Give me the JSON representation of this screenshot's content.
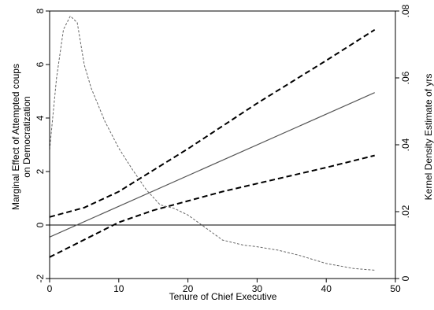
{
  "chart_data": {
    "type": "line",
    "title": "",
    "xlabel": "Tenure of Chief Executive",
    "ylabel_left": [
      "Marginal Effect of Attempted coups",
      "on Democratization"
    ],
    "ylabel_right": "Kernel Density Estimate of yrs",
    "xlim": [
      0,
      50
    ],
    "ylim_left": [
      -2,
      8
    ],
    "ylim_right": [
      0,
      0.08
    ],
    "xticks": [
      "0",
      "10",
      "20",
      "30",
      "40",
      "50"
    ],
    "yticks_left": [
      "-2",
      "0",
      "2",
      "4",
      "6",
      "8"
    ],
    "yticks_right": [
      "0",
      ".02",
      ".04",
      ".06",
      ".08"
    ],
    "grid": false,
    "legend": "none",
    "reference_line": {
      "y": 0,
      "color": "#000000"
    },
    "series": [
      {
        "role": "marginal_effect",
        "axis": "left",
        "style": "solid",
        "color": "#555555",
        "points": [
          [
            0,
            -0.45
          ],
          [
            47,
            4.95
          ]
        ]
      },
      {
        "role": "upper_ci",
        "axis": "left",
        "style": "dashed",
        "color": "#000000",
        "points": [
          [
            0,
            0.3
          ],
          [
            5,
            0.65
          ],
          [
            10,
            1.25
          ],
          [
            15,
            2.05
          ],
          [
            20,
            2.85
          ],
          [
            25,
            3.7
          ],
          [
            30,
            4.55
          ],
          [
            35,
            5.35
          ],
          [
            40,
            6.15
          ],
          [
            47,
            7.3
          ]
        ]
      },
      {
        "role": "lower_ci",
        "axis": "left",
        "style": "dashed",
        "color": "#000000",
        "points": [
          [
            0,
            -1.2
          ],
          [
            5,
            -0.55
          ],
          [
            10,
            0.1
          ],
          [
            15,
            0.55
          ],
          [
            20,
            0.9
          ],
          [
            25,
            1.25
          ],
          [
            30,
            1.55
          ],
          [
            35,
            1.85
          ],
          [
            40,
            2.15
          ],
          [
            47,
            2.6
          ]
        ]
      },
      {
        "role": "kernel_density",
        "axis": "right",
        "style": "dotted",
        "color": "#666666",
        "points": [
          [
            0,
            0.0385
          ],
          [
            1,
            0.06
          ],
          [
            2,
            0.0745
          ],
          [
            3,
            0.0785
          ],
          [
            4,
            0.0765
          ],
          [
            5,
            0.064
          ],
          [
            6,
            0.057
          ],
          [
            8,
            0.047
          ],
          [
            10,
            0.039
          ],
          [
            12,
            0.0325
          ],
          [
            14,
            0.0265
          ],
          [
            16,
            0.022
          ],
          [
            18,
            0.021
          ],
          [
            20,
            0.019
          ],
          [
            22,
            0.016
          ],
          [
            25,
            0.0115
          ],
          [
            28,
            0.01
          ],
          [
            30,
            0.0095
          ],
          [
            33,
            0.0085
          ],
          [
            36,
            0.007
          ],
          [
            40,
            0.0045
          ],
          [
            44,
            0.003
          ],
          [
            47,
            0.0025
          ]
        ]
      }
    ]
  }
}
